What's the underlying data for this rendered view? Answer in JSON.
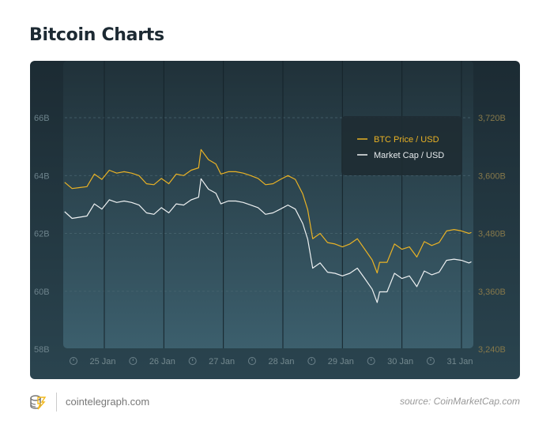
{
  "header": {
    "title": "Bitcoin Charts"
  },
  "footer": {
    "site": "cointelegraph.com",
    "source": "source: CoinMarketCap.com",
    "logo_icon": "cointelegraph-logo-icon"
  },
  "colors": {
    "btc": "#e9b225",
    "market_cap": "#eef1f2",
    "left_axis": "#6c828b",
    "right_axis": "#86784a"
  },
  "chart_data": {
    "type": "line",
    "title": "",
    "grid": true,
    "legend_position": "top-right",
    "x_ticks": [
      "25 Jan",
      "26 Jan",
      "27 Jan",
      "28 Jan",
      "29 Jan",
      "30 Jan",
      "31 Jan"
    ],
    "y_left": {
      "ticks": [
        "66B",
        "64B",
        "62B",
        "60B",
        "58B"
      ],
      "range": [
        58,
        66
      ]
    },
    "y_right": {
      "ticks": [
        "3,720B",
        "3,600B",
        "3,480B",
        "3,360B",
        "3,240B"
      ],
      "range": [
        3240,
        3720
      ]
    },
    "x": [
      "24 Jan 08:00",
      "24 Jan 11:00",
      "24 Jan 14:00",
      "24 Jan 17:00",
      "24 Jan 20:00",
      "24 Jan 23:00",
      "25 Jan 02:00",
      "25 Jan 05:00",
      "25 Jan 08:00",
      "25 Jan 11:00",
      "25 Jan 14:00",
      "25 Jan 17:00",
      "25 Jan 20:00",
      "25 Jan 23:00",
      "26 Jan 02:00",
      "26 Jan 05:00",
      "26 Jan 08:00",
      "26 Jan 11:00",
      "26 Jan 14:00",
      "26 Jan 15:00",
      "26 Jan 18:00",
      "26 Jan 21:00",
      "26 Jan 23:00",
      "27 Jan 02:00",
      "27 Jan 05:00",
      "27 Jan 08:00",
      "27 Jan 11:00",
      "27 Jan 14:00",
      "27 Jan 17:00",
      "27 Jan 20:00",
      "27 Jan 23:00",
      "28 Jan 02:00",
      "28 Jan 05:00",
      "28 Jan 08:00",
      "28 Jan 10:00",
      "28 Jan 12:00",
      "28 Jan 15:00",
      "28 Jan 18:00",
      "28 Jan 21:00",
      "29 Jan 00:00",
      "29 Jan 03:00",
      "29 Jan 06:00",
      "29 Jan 09:00",
      "29 Jan 12:00",
      "29 Jan 14:00",
      "29 Jan 15:00",
      "29 Jan 18:00",
      "29 Jan 21:00",
      "30 Jan 00:00",
      "30 Jan 03:00",
      "30 Jan 06:00",
      "30 Jan 09:00",
      "30 Jan 12:00",
      "30 Jan 15:00",
      "30 Jan 18:00",
      "30 Jan 21:00",
      "31 Jan 00:00",
      "31 Jan 03:00",
      "31 Jan 04:00"
    ],
    "series": [
      {
        "name": "BTC Price / USD",
        "axis": "right",
        "values": [
          3586,
          3573,
          3575,
          3577,
          3603,
          3592,
          3611,
          3605,
          3608,
          3605,
          3600,
          3583,
          3581,
          3594,
          3583,
          3603,
          3600,
          3611,
          3616,
          3654,
          3633,
          3624,
          3603,
          3608,
          3608,
          3605,
          3600,
          3594,
          3581,
          3583,
          3592,
          3600,
          3592,
          3562,
          3529,
          3469,
          3480,
          3461,
          3458,
          3452,
          3458,
          3469,
          3447,
          3425,
          3398,
          3420,
          3420,
          3458,
          3447,
          3452,
          3431,
          3463,
          3455,
          3461,
          3485,
          3488,
          3485,
          3480,
          3482
        ]
      },
      {
        "name": "Market Cap / USD",
        "axis": "left",
        "values": [
          62.75,
          62.52,
          62.56,
          62.6,
          63.02,
          62.84,
          63.16,
          63.07,
          63.12,
          63.07,
          62.98,
          62.71,
          62.66,
          62.89,
          62.71,
          63.02,
          62.98,
          63.16,
          63.25,
          63.89,
          63.53,
          63.39,
          63.02,
          63.12,
          63.12,
          63.07,
          62.98,
          62.89,
          62.66,
          62.71,
          62.84,
          62.98,
          62.84,
          62.34,
          61.8,
          60.8,
          60.98,
          60.66,
          60.62,
          60.53,
          60.62,
          60.8,
          60.44,
          60.07,
          59.61,
          59.98,
          59.98,
          60.62,
          60.44,
          60.53,
          60.16,
          60.7,
          60.57,
          60.66,
          61.07,
          61.11,
          61.07,
          60.98,
          61.02
        ]
      }
    ]
  }
}
